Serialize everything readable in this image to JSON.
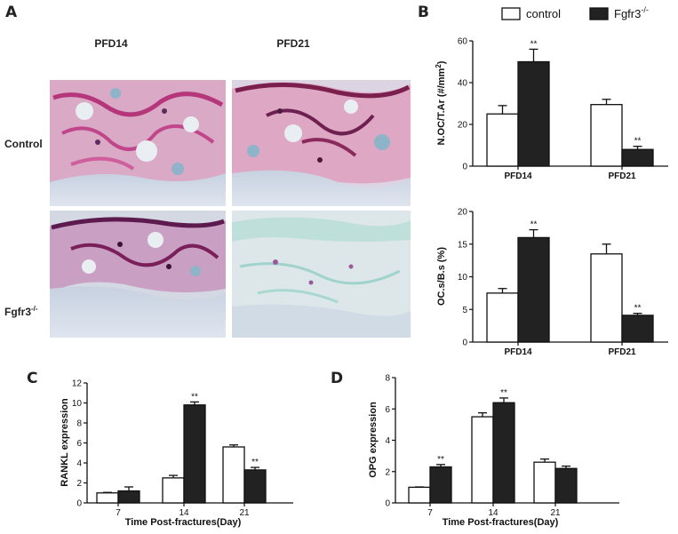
{
  "panel_a": {
    "letter": "A",
    "col_headers": [
      "PFD14",
      "PFD21"
    ],
    "row_labels": {
      "control": "Control",
      "fgfr3_base": "Fgfr3",
      "fgfr3_sup": "-/-"
    },
    "micrographs": [
      {
        "row": 0,
        "col": 0,
        "stain": "trap-high"
      },
      {
        "row": 0,
        "col": 1,
        "stain": "trap-high"
      },
      {
        "row": 1,
        "col": 0,
        "stain": "trap-mid"
      },
      {
        "row": 1,
        "col": 1,
        "stain": "trap-low"
      }
    ]
  },
  "legend": {
    "control_label": "control",
    "fgfr3_label_base": "Fgfr3",
    "fgfr3_label_sup": "-/-",
    "colors": {
      "control": "#ffffff",
      "fgfr3": "#222222"
    }
  },
  "chart_data": [
    {
      "id": "b_top",
      "panel": "B",
      "type": "bar",
      "ylabel_base": "N.OC/T.Ar (#/mm",
      "ylabel_sup": "2",
      "ylabel_end": ")",
      "ylim": [
        0,
        60
      ],
      "yticks": [
        0,
        20,
        40,
        60
      ],
      "categories": [
        "PFD14",
        "PFD21"
      ],
      "series": [
        {
          "key": "control",
          "values": [
            25,
            29.5
          ],
          "errors": [
            4,
            2.5
          ],
          "sig": [
            "",
            ""
          ]
        },
        {
          "key": "fgfr3",
          "values": [
            50,
            8
          ],
          "errors": [
            6,
            1.5
          ],
          "sig": [
            "**",
            "**"
          ]
        }
      ]
    },
    {
      "id": "b_bottom",
      "panel": "",
      "type": "bar",
      "ylabel": "OC.s/B.s (%)",
      "ylim": [
        0,
        20
      ],
      "yticks": [
        0,
        5,
        10,
        15,
        20
      ],
      "categories": [
        "PFD14",
        "PFD21"
      ],
      "series": [
        {
          "key": "control",
          "values": [
            7.5,
            13.5
          ],
          "errors": [
            0.7,
            1.5
          ],
          "sig": [
            "",
            ""
          ]
        },
        {
          "key": "fgfr3",
          "values": [
            16,
            4.1
          ],
          "errors": [
            1.2,
            0.3
          ],
          "sig": [
            "**",
            "**"
          ]
        }
      ]
    },
    {
      "id": "c",
      "panel": "C",
      "type": "bar",
      "ylabel": "RANKL expression",
      "xlabel": "Time Post-fractures(Day)",
      "ylim": [
        0,
        12
      ],
      "yticks": [
        0,
        2,
        4,
        6,
        8,
        10,
        12
      ],
      "categories": [
        "7",
        "14",
        "21"
      ],
      "series": [
        {
          "key": "control",
          "values": [
            1.0,
            2.5,
            5.6
          ],
          "errors": [
            0.05,
            0.25,
            0.2
          ],
          "sig": [
            "",
            "",
            ""
          ]
        },
        {
          "key": "fgfr3",
          "values": [
            1.2,
            9.8,
            3.3
          ],
          "errors": [
            0.4,
            0.3,
            0.25
          ],
          "sig": [
            "",
            "**",
            "**"
          ]
        }
      ]
    },
    {
      "id": "d",
      "panel": "D",
      "type": "bar",
      "ylabel": "OPG expression",
      "xlabel": "Time Post-fractures(Day)",
      "ylim": [
        0,
        8
      ],
      "yticks": [
        0,
        2,
        4,
        6,
        8
      ],
      "categories": [
        "7",
        "14",
        "21"
      ],
      "series": [
        {
          "key": "control",
          "values": [
            1.0,
            5.5,
            2.6
          ],
          "errors": [
            0.02,
            0.25,
            0.2
          ],
          "sig": [
            "",
            "",
            ""
          ]
        },
        {
          "key": "fgfr3",
          "values": [
            2.3,
            6.4,
            2.2
          ],
          "errors": [
            0.15,
            0.3,
            0.15
          ],
          "sig": [
            "**",
            "**",
            ""
          ]
        }
      ]
    }
  ]
}
